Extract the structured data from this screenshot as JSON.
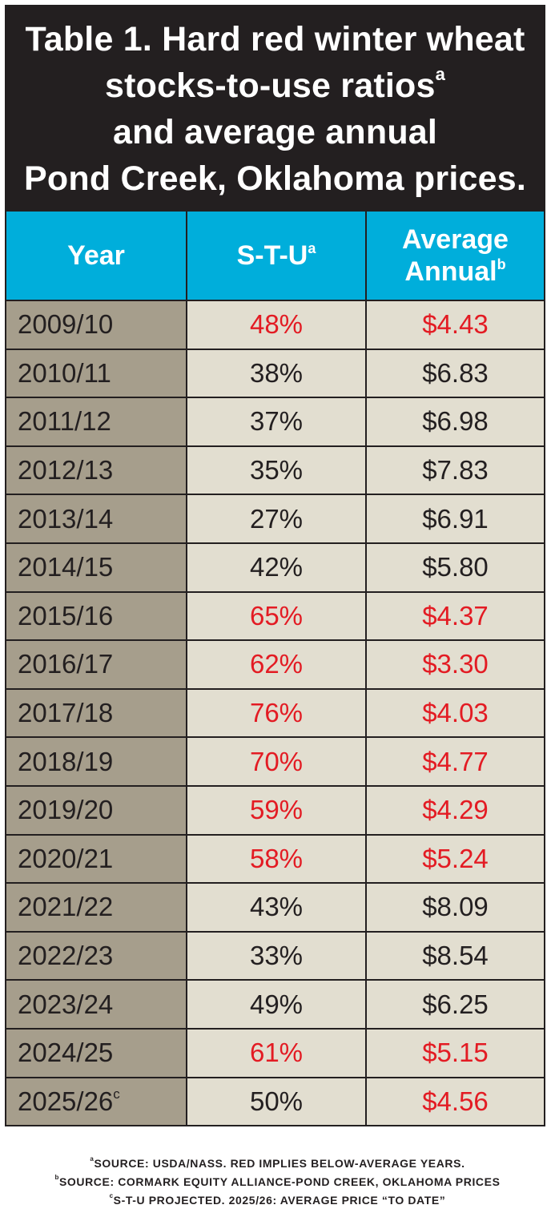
{
  "title": {
    "lines": [
      "Table 1. Hard red winter wheat",
      "stocks-to-use ratios",
      "and average annual",
      "Pond Creek, Oklahoma prices."
    ],
    "line2_sup": "a"
  },
  "headers": {
    "year": "Year",
    "stu": "S-T-U",
    "stu_sup": "a",
    "avg_line1": "Average",
    "avg_line2": "Annual",
    "avg_sup": "b"
  },
  "colors": {
    "below_average": "#e31b23",
    "normal": "#231f20",
    "header": "#00aedb",
    "title_bg": "#231f20"
  },
  "rows": [
    {
      "year": "2009/10",
      "sup": "",
      "stu": "48%",
      "price": "$4.43",
      "red": true
    },
    {
      "year": "2010/11",
      "sup": "",
      "stu": "38%",
      "price": "$6.83",
      "red": false
    },
    {
      "year": "2011/12",
      "sup": "",
      "stu": "37%",
      "price": "$6.98",
      "red": false
    },
    {
      "year": "2012/13",
      "sup": "",
      "stu": "35%",
      "price": "$7.83",
      "red": false
    },
    {
      "year": "2013/14",
      "sup": "",
      "stu": "27%",
      "price": "$6.91",
      "red": false
    },
    {
      "year": "2014/15",
      "sup": "",
      "stu": "42%",
      "price": "$5.80",
      "red": false
    },
    {
      "year": "2015/16",
      "sup": "",
      "stu": "65%",
      "price": "$4.37",
      "red": true
    },
    {
      "year": "2016/17",
      "sup": "",
      "stu": "62%",
      "price": "$3.30",
      "red": true
    },
    {
      "year": "2017/18",
      "sup": "",
      "stu": "76%",
      "price": "$4.03",
      "red": true
    },
    {
      "year": "2018/19",
      "sup": "",
      "stu": "70%",
      "price": "$4.77",
      "red": true
    },
    {
      "year": "2019/20",
      "sup": "",
      "stu": "59%",
      "price": "$4.29",
      "red": true
    },
    {
      "year": "2020/21",
      "sup": "",
      "stu": "58%",
      "price": "$5.24",
      "red": true
    },
    {
      "year": "2021/22",
      "sup": "",
      "stu": "43%",
      "price": "$8.09",
      "red": false
    },
    {
      "year": "2022/23",
      "sup": "",
      "stu": "33%",
      "price": "$8.54",
      "red": false
    },
    {
      "year": "2023/24",
      "sup": "",
      "stu": "49%",
      "price": "$6.25",
      "red": false
    },
    {
      "year": "2024/25",
      "sup": "",
      "stu": "61%",
      "price": "$5.15",
      "red": true
    },
    {
      "year": "2025/26",
      "sup": "c",
      "stu": "50%",
      "price": "$4.56",
      "red": "price"
    }
  ],
  "notes": [
    {
      "sup": "a",
      "text": "SOURCE: USDA/NASS. RED IMPLIES BELOW-AVERAGE YEARS."
    },
    {
      "sup": "b",
      "text": "SOURCE: CORMARK EQUITY ALLIANCE-POND CREEK, OKLAHOMA PRICES"
    },
    {
      "sup": "c",
      "text": "S-T-U PROJECTED. 2025/26: AVERAGE PRICE “TO DATE”"
    }
  ]
}
